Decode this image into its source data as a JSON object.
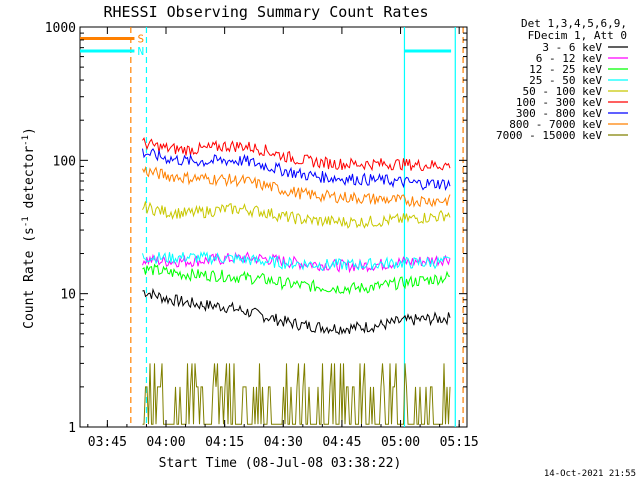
{
  "footer": {
    "timestamp": "14-Oct-2021 21:55"
  },
  "chart_data": {
    "type": "line",
    "title": "RHESSI Observing Summary Count Rates",
    "xlabel": "Start Time (08-Jul-08 03:38:22)",
    "ylabel": "Count Rate (s⁻¹ detector⁻¹)",
    "yscale": "log",
    "ylim": [
      1,
      1000
    ],
    "xlim": [
      "03:38",
      "05:17"
    ],
    "x_ticks": [
      "03:45",
      "04:00",
      "04:15",
      "04:30",
      "04:45",
      "05:00",
      "05:15"
    ],
    "y_ticks": [
      "1",
      "10",
      "100",
      "1000"
    ],
    "legend": {
      "placement": "right",
      "header": [
        "Det 1,3,4,5,6,9,",
        "FDecim 1, Att 0"
      ]
    },
    "markers": [
      {
        "label": "S",
        "color": "#ff8000",
        "style": "dashed",
        "times": [
          "03:51",
          "05:16"
        ]
      },
      {
        "label": "N",
        "color": "#00ffff",
        "style": "dashed",
        "times": [
          "03:55"
        ]
      },
      {
        "label": "",
        "color": "#00ffff",
        "style": "solid",
        "times": [
          "05:01",
          "05:14"
        ]
      }
    ],
    "bars": [
      {
        "label": "S",
        "color": "#ff8000",
        "y": 820,
        "start": "03:38",
        "end": "03:55"
      },
      {
        "label": "N",
        "color": "#00ffff",
        "y": 660,
        "start": "03:38",
        "end": "03:55"
      },
      {
        "label": "",
        "color": "#00ffff",
        "y": 660,
        "start": "05:01",
        "end": "05:16"
      }
    ],
    "times": [
      "03:54",
      "04:00",
      "04:05",
      "04:10",
      "04:15",
      "04:20",
      "04:25",
      "04:30",
      "04:35",
      "04:40",
      "04:45",
      "04:50",
      "04:55",
      "05:00",
      "05:05",
      "05:10",
      "05:13"
    ],
    "series": [
      {
        "name": "3 - 6 keV",
        "color": "#000000",
        "values": [
          10.5,
          9.2,
          8.6,
          8.2,
          8.0,
          7.4,
          6.8,
          6.2,
          5.8,
          5.6,
          5.5,
          5.6,
          5.8,
          6.2,
          6.4,
          6.5,
          6.6
        ]
      },
      {
        "name": "6 - 12 keV",
        "color": "#ff00ff",
        "values": [
          18,
          17.5,
          17.5,
          17.8,
          18.2,
          18.5,
          18.3,
          17.5,
          16.8,
          16.5,
          16.2,
          16.2,
          16.6,
          17.2,
          17.5,
          18,
          18.5
        ]
      },
      {
        "name": "12 - 25 keV",
        "color": "#00ff00",
        "values": [
          15.5,
          14.5,
          14,
          13.8,
          13.6,
          13.2,
          12.8,
          12,
          11.5,
          11.2,
          11,
          11,
          11.4,
          12,
          12.5,
          13,
          13.5
        ]
      },
      {
        "name": "25 - 50 keV",
        "color": "#00ffff",
        "values": [
          19,
          18.5,
          18.8,
          18.5,
          18.5,
          18,
          17.5,
          17,
          16.8,
          16.5,
          16.5,
          16.5,
          16.8,
          17,
          17,
          17.2,
          17.5
        ]
      },
      {
        "name": "50 - 100 keV",
        "color": "#c8c800",
        "values": [
          45,
          41,
          40,
          41,
          43,
          43,
          41,
          38,
          36,
          35,
          34.5,
          34.5,
          35,
          36,
          37,
          38,
          40
        ]
      },
      {
        "name": "100 - 300 keV",
        "color": "#ff0000",
        "values": [
          135,
          123,
          120,
          122,
          128,
          128,
          120,
          108,
          100,
          96,
          94,
          94,
          94,
          94,
          92,
          92,
          92
        ]
      },
      {
        "name": "300 - 800 keV",
        "color": "#0000ff",
        "values": [
          115,
          104,
          99,
          98,
          100,
          99,
          92,
          84,
          78,
          75,
          73,
          72,
          71,
          69,
          67,
          67,
          66
        ]
      },
      {
        "name": "800 - 7000 keV",
        "color": "#ff8000",
        "values": [
          84,
          77,
          74,
          73,
          72,
          70,
          65,
          60,
          56,
          54,
          53,
          52,
          51,
          50,
          50,
          50,
          50
        ]
      },
      {
        "name": "7000 - 15000 keV",
        "color": "#808000",
        "values": [
          2,
          2,
          2,
          2,
          2.5,
          2.5,
          2,
          2,
          2,
          2,
          2,
          2,
          2,
          2,
          2.5,
          2.5,
          2
        ]
      }
    ]
  }
}
